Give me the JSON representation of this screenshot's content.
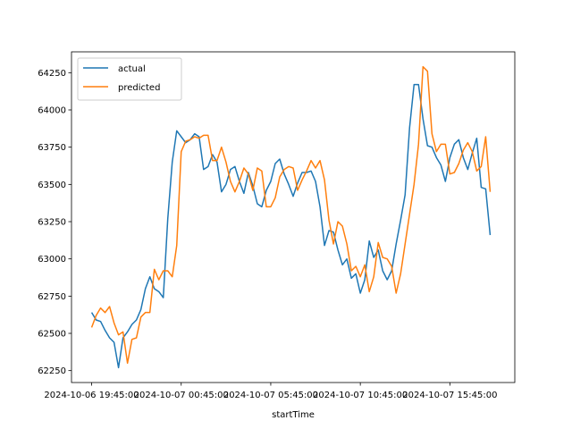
{
  "chart_data": {
    "type": "line",
    "xlabel": "startTime",
    "ylabel": "",
    "x_tick_labels": [
      "2024-10-06 19:45:00",
      "2024-10-07 00:45:00",
      "2024-10-07 05:45:00",
      "2024-10-07 10:45:00",
      "2024-10-07 15:45:00"
    ],
    "x_tick_steps": [
      0,
      20,
      40,
      60,
      80
    ],
    "y_ticks": [
      62250,
      62500,
      62750,
      63000,
      63250,
      63500,
      63750,
      64000,
      64250
    ],
    "y_tick_labels": [
      "62250",
      "62500",
      "62750",
      "63000",
      "63250",
      "63500",
      "63750",
      "64000",
      "64250"
    ],
    "xlim": [
      -4.5,
      94.5
    ],
    "ylim": [
      62170,
      64390
    ],
    "legend_position": "upper-left",
    "grid": false,
    "series": [
      {
        "name": "actual",
        "color": "#1f77b4",
        "values": [
          62640,
          62590,
          62580,
          62520,
          62470,
          62440,
          62270,
          62470,
          62510,
          62560,
          62590,
          62660,
          62800,
          62880,
          62800,
          62780,
          62740,
          63270,
          63650,
          63860,
          63820,
          63780,
          63800,
          63840,
          63820,
          63600,
          63620,
          63700,
          63650,
          63450,
          63500,
          63600,
          63620,
          63520,
          63440,
          63580,
          63490,
          63370,
          63350,
          63460,
          63520,
          63640,
          63670,
          63570,
          63500,
          63420,
          63510,
          63580,
          63580,
          63590,
          63520,
          63350,
          63090,
          63190,
          63180,
          63060,
          62960,
          63000,
          62870,
          62900,
          62770,
          62860,
          63120,
          63010,
          63060,
          62920,
          62860,
          62920,
          63100,
          63260,
          63430,
          63880,
          64170,
          64170,
          63940,
          63760,
          63750,
          63680,
          63630,
          63520,
          63680,
          63770,
          63800,
          63680,
          63600,
          63710,
          63810,
          63480,
          63470,
          63160
        ]
      },
      {
        "name": "predicted",
        "color": "#ff7f0e",
        "values": [
          62540,
          62620,
          62670,
          62640,
          62680,
          62570,
          62490,
          62510,
          62300,
          62460,
          62470,
          62610,
          62640,
          62640,
          62930,
          62860,
          62920,
          62920,
          62880,
          63090,
          63720,
          63790,
          63800,
          63820,
          63810,
          63830,
          63830,
          63660,
          63660,
          63750,
          63650,
          63520,
          63450,
          63520,
          63610,
          63570,
          63460,
          63610,
          63590,
          63350,
          63350,
          63410,
          63550,
          63600,
          63620,
          63610,
          63460,
          63530,
          63590,
          63660,
          63610,
          63660,
          63530,
          63260,
          63100,
          63250,
          63220,
          63100,
          62920,
          62950,
          62880,
          62960,
          62780,
          62880,
          63110,
          63010,
          63000,
          62950,
          62770,
          62900,
          63100,
          63300,
          63500,
          63770,
          64290,
          64260,
          63840,
          63720,
          63770,
          63770,
          63570,
          63580,
          63640,
          63730,
          63780,
          63720,
          63590,
          63620,
          63820,
          63450
        ]
      }
    ]
  }
}
